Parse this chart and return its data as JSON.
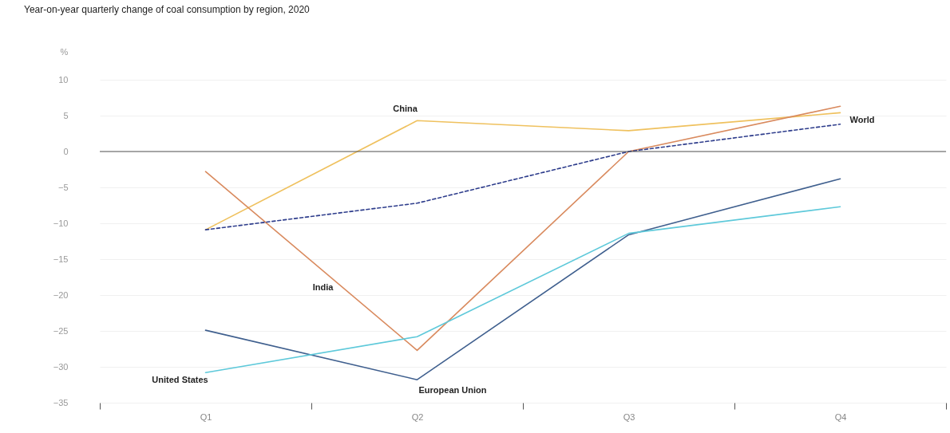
{
  "chart_data": {
    "type": "line",
    "title": "Year-on-year quarterly change of coal consumption by region, 2020",
    "ylabel": "%",
    "categories": [
      "Q1",
      "Q2",
      "Q3",
      "Q4"
    ],
    "series": [
      {
        "name": "China",
        "color": "#efc15e",
        "values": [
          -10.9,
          4.3,
          2.9,
          5.4
        ]
      },
      {
        "name": "India",
        "color": "#d98a5e",
        "values": [
          -2.8,
          -27.7,
          0,
          6.3
        ]
      },
      {
        "name": "World",
        "color": "#2e3d8c",
        "values": [
          -10.9,
          -7.2,
          0,
          3.8
        ],
        "line_style": "dashed"
      },
      {
        "name": "European Union",
        "color": "#3f5f8e",
        "values": [
          -24.9,
          -31.8,
          -11.6,
          -3.8
        ]
      },
      {
        "name": "United States",
        "color": "#5ec9da",
        "values": [
          -30.8,
          -25.8,
          -11.4,
          -7.7
        ]
      }
    ],
    "ylim": [
      -35,
      10
    ],
    "yticks": [
      -35,
      -30,
      -25,
      -20,
      -15,
      -10,
      -5,
      0,
      5,
      10
    ],
    "grid": "y",
    "legend": false,
    "marker": "none",
    "line_style": "solid",
    "ref_lines": [
      {
        "axis": "y",
        "value": 0,
        "color": "#555555"
      }
    ]
  }
}
